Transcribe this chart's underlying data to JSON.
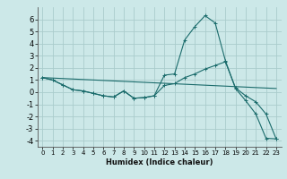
{
  "xlabel": "Humidex (Indice chaleur)",
  "bg_color": "#cce8e8",
  "grid_color": "#aacccc",
  "line_color": "#1a6b6b",
  "x_ticks": [
    0,
    1,
    2,
    3,
    4,
    5,
    6,
    7,
    8,
    9,
    10,
    11,
    12,
    13,
    14,
    15,
    16,
    17,
    18,
    19,
    20,
    21,
    22,
    23
  ],
  "ylim": [
    -4.5,
    7.0
  ],
  "xlim": [
    -0.5,
    23.5
  ],
  "yticks": [
    -4,
    -3,
    -2,
    -1,
    0,
    1,
    2,
    3,
    4,
    5,
    6
  ],
  "series1_x": [
    0,
    1,
    2,
    3,
    4,
    5,
    6,
    7,
    8,
    9,
    10,
    11,
    12,
    13,
    14,
    15,
    16,
    17,
    18,
    19,
    20,
    21,
    22,
    23
  ],
  "series1_y": [
    1.2,
    1.0,
    0.6,
    0.2,
    0.1,
    -0.1,
    -0.3,
    -0.4,
    0.1,
    -0.5,
    -0.45,
    -0.3,
    1.4,
    1.5,
    4.3,
    5.4,
    6.3,
    5.7,
    2.6,
    0.3,
    -0.7,
    -1.8,
    -3.8,
    -3.85
  ],
  "series2_x": [
    0,
    1,
    2,
    3,
    4,
    5,
    6,
    7,
    8,
    9,
    10,
    11,
    12,
    13,
    14,
    15,
    16,
    17,
    18,
    19,
    20,
    21,
    22,
    23
  ],
  "series2_y": [
    1.2,
    1.0,
    0.6,
    0.2,
    0.1,
    -0.1,
    -0.3,
    -0.4,
    0.1,
    -0.5,
    -0.45,
    -0.3,
    0.55,
    0.7,
    1.2,
    1.5,
    1.9,
    2.2,
    2.5,
    0.35,
    -0.3,
    -0.8,
    -1.8,
    -3.85
  ],
  "series3_x": [
    0,
    23
  ],
  "series3_y": [
    1.2,
    0.3
  ]
}
